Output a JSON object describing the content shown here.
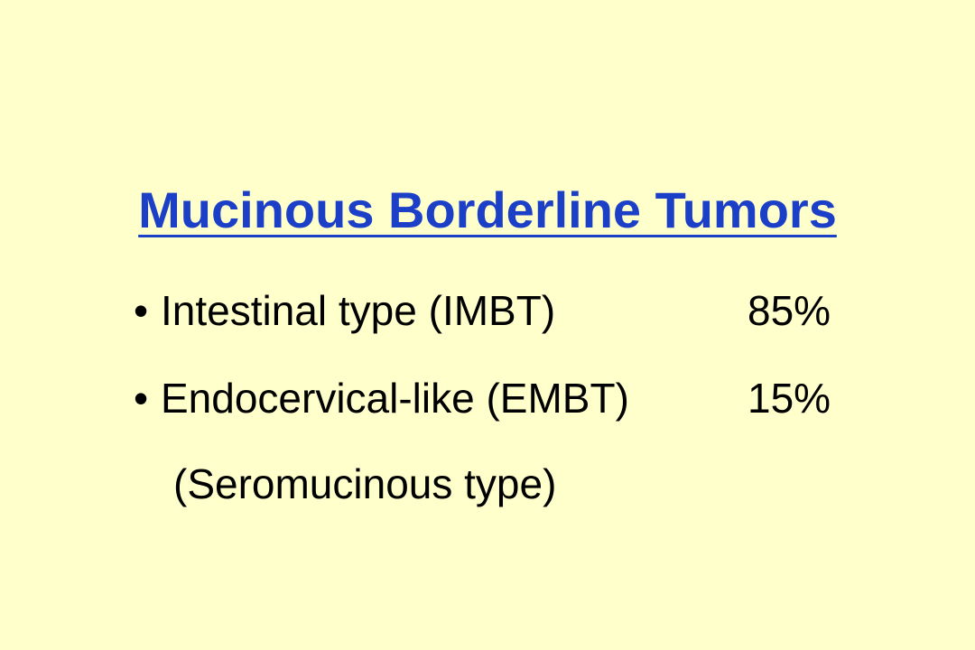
{
  "slide": {
    "title": "Mucinous Borderline Tumors",
    "items": [
      {
        "bullet": "•",
        "label": "Intestinal type (IMBT)",
        "value": "85%"
      },
      {
        "bullet": "•",
        "label": "Endocervical-like (EMBT)",
        "value": "15%"
      }
    ],
    "subline": "(Seromucinous type)"
  },
  "colors": {
    "background": "#FFFFCC",
    "title": "#1B3FC7",
    "text": "#000000"
  }
}
